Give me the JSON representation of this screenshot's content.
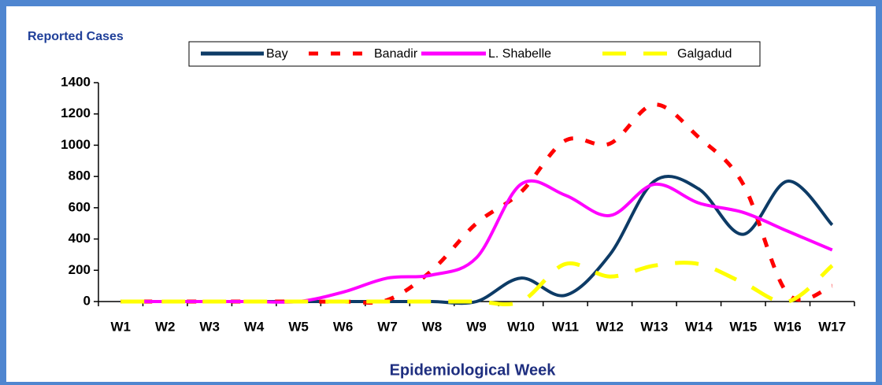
{
  "chart_data": {
    "type": "line",
    "y_label": "Reported Cases",
    "x_label": "Epidemiological Week",
    "categories": [
      "W1",
      "W2",
      "W3",
      "W4",
      "W5",
      "W6",
      "W7",
      "W8",
      "W9",
      "W10",
      "W11",
      "W12",
      "W13",
      "W14",
      "W15",
      "W16",
      "W17"
    ],
    "series": [
      {
        "name": "Bay",
        "color": "#0d3b66",
        "dash": "solid",
        "values": [
          0,
          0,
          0,
          0,
          0,
          0,
          0,
          0,
          0,
          150,
          40,
          300,
          770,
          720,
          430,
          770,
          490
        ]
      },
      {
        "name": "Banadir",
        "color": "#ff0000",
        "dash": "dotted",
        "values": [
          0,
          0,
          0,
          0,
          0,
          0,
          10,
          200,
          500,
          700,
          1030,
          1010,
          1260,
          1050,
          750,
          50,
          100
        ]
      },
      {
        "name": "L. Shabelle",
        "color": "#ff00ff",
        "dash": "solid",
        "values": [
          0,
          0,
          0,
          0,
          0,
          60,
          150,
          170,
          280,
          750,
          680,
          550,
          750,
          630,
          570,
          450,
          330
        ]
      },
      {
        "name": "Galgadud",
        "color": "#ffff00",
        "dash": "dashed",
        "values": [
          0,
          0,
          0,
          0,
          0,
          0,
          0,
          0,
          0,
          0,
          240,
          160,
          230,
          240,
          120,
          0,
          230
        ]
      }
    ],
    "ylim": [
      0,
      1400
    ],
    "yticks": [
      0,
      200,
      400,
      600,
      800,
      1000,
      1200,
      1400
    ]
  }
}
